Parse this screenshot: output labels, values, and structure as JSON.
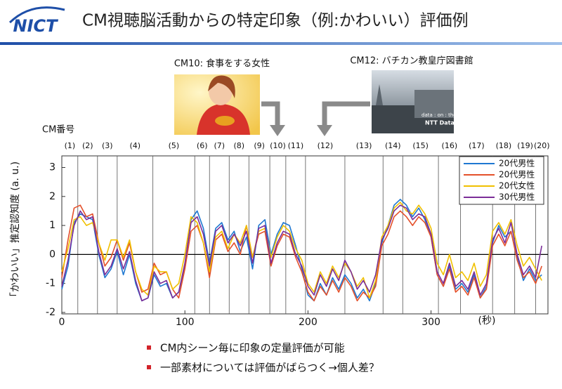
{
  "logo": "NICT",
  "header": {
    "title": "CM視聴脳活動からの特定印象（例:かわいい）評価例"
  },
  "images": [
    {
      "caption": "CM10: 食事をする女性"
    },
    {
      "caption": "CM12: バチカン教皇庁図書館",
      "text": [
        "data : on : the future",
        "NTT Data"
      ]
    }
  ],
  "bullets": [
    "CM内シーン毎に印象の定量評価が可能",
    "一部素材については評価がばらつく→個人差？"
  ],
  "chart_data": {
    "type": "line",
    "segment_title": "CM番号",
    "y_label": "「かわいい」推定認知度 (a. u.)",
    "x_label": "(秒)",
    "xlim": [
      0,
      395
    ],
    "xticks": [
      0,
      100,
      200,
      300
    ],
    "ylim": [
      -2.05,
      3.4
    ],
    "yticks": [
      -2,
      -1,
      0,
      1,
      2,
      3
    ],
    "segment_bounds": [
      13,
      29,
      45,
      74,
      108,
      120,
      136,
      152,
      169,
      182,
      198,
      230,
      261,
      277,
      306,
      324,
      350,
      368,
      385
    ],
    "segment_labels": [
      "(1)",
      "(2)",
      "(3)",
      "(4)",
      "(5)",
      "(6)",
      "(7)",
      "(8)",
      "(9)",
      "(10)",
      "(11)",
      "(12)",
      "(13)",
      "(14)",
      "(15)",
      "(16)",
      "(17)",
      "(18)",
      "(19)",
      "(20)"
    ],
    "legend": "upper right",
    "x": [
      0,
      5,
      10,
      15,
      20,
      25,
      30,
      35,
      40,
      45,
      50,
      55,
      60,
      65,
      70,
      75,
      80,
      85,
      90,
      95,
      100,
      105,
      110,
      115,
      120,
      125,
      130,
      135,
      140,
      145,
      150,
      155,
      160,
      165,
      170,
      175,
      180,
      185,
      190,
      195,
      200,
      205,
      210,
      215,
      220,
      225,
      230,
      235,
      240,
      245,
      250,
      255,
      260,
      265,
      270,
      275,
      280,
      285,
      290,
      295,
      300,
      305,
      310,
      315,
      320,
      325,
      330,
      335,
      340,
      345,
      350,
      355,
      360,
      365,
      370,
      375,
      380,
      385,
      390
    ],
    "series": [
      {
        "name": "20代男性",
        "color": "#1f78d1",
        "values": [
          -1.2,
          -0.4,
          1.1,
          1.4,
          1.3,
          1.2,
          0.0,
          -0.8,
          -0.5,
          0.1,
          -0.7,
          0.0,
          -1.0,
          -1.6,
          -1.5,
          -0.7,
          -1.1,
          -1.0,
          -1.5,
          -1.3,
          -0.4,
          1.2,
          1.5,
          0.9,
          -0.3,
          0.9,
          1.1,
          0.5,
          0.8,
          0.1,
          0.6,
          -0.5,
          1.0,
          1.2,
          0.0,
          0.7,
          1.1,
          1.0,
          0.3,
          -0.5,
          -1.4,
          -1.6,
          -1.0,
          -1.4,
          -0.8,
          -1.2,
          -0.7,
          -1.0,
          -1.5,
          -1.2,
          -1.6,
          -1.0,
          0.4,
          1.0,
          1.7,
          1.9,
          1.7,
          1.3,
          1.6,
          1.2,
          0.6,
          -0.7,
          -1.1,
          -0.4,
          -1.2,
          -1.0,
          -1.3,
          -0.7,
          -1.5,
          -1.1,
          0.4,
          1.0,
          0.6,
          0.8,
          -0.1,
          -0.9,
          -0.5,
          -0.9,
          -0.7
        ]
      },
      {
        "name": "20代男性",
        "color": "#e4502a",
        "values": [
          -0.8,
          0.5,
          1.6,
          1.7,
          1.3,
          1.4,
          0.4,
          -0.4,
          -0.1,
          0.5,
          -0.2,
          0.4,
          -0.6,
          -1.3,
          -1.2,
          -0.3,
          -0.7,
          -0.6,
          -1.2,
          -1.5,
          -0.5,
          0.8,
          1.0,
          0.4,
          -0.8,
          0.5,
          0.7,
          0.1,
          0.4,
          0.0,
          1.0,
          -0.1,
          0.7,
          0.8,
          -0.4,
          0.3,
          0.7,
          0.6,
          -0.1,
          -0.6,
          -1.3,
          -1.6,
          -1.1,
          -1.4,
          -0.9,
          -1.3,
          -0.8,
          -1.1,
          -1.6,
          -1.3,
          -1.5,
          -1.1,
          0.3,
          0.7,
          1.3,
          1.5,
          1.3,
          1.0,
          1.3,
          1.1,
          0.6,
          -0.7,
          -1.1,
          -0.5,
          -1.3,
          -1.1,
          -1.4,
          -0.8,
          -1.5,
          -1.2,
          0.3,
          0.7,
          0.3,
          0.8,
          -0.2,
          -0.8,
          -0.6,
          -1.0,
          -0.4
        ]
      },
      {
        "name": "20代女性",
        "color": "#f0c000",
        "values": [
          -0.6,
          0.2,
          1.2,
          1.3,
          1.0,
          1.1,
          0.4,
          -0.2,
          0.5,
          0.5,
          -0.1,
          0.5,
          -0.6,
          -1.2,
          -1.4,
          -0.4,
          -0.6,
          -0.6,
          -1.2,
          -1.0,
          0.0,
          1.3,
          1.1,
          0.4,
          -0.6,
          0.6,
          0.8,
          0.2,
          0.7,
          0.4,
          1.0,
          -0.1,
          0.8,
          0.9,
          -0.1,
          0.6,
          1.0,
          0.8,
          0.2,
          -0.2,
          -1.0,
          -1.3,
          -0.6,
          -1.0,
          -0.4,
          -0.8,
          -0.3,
          -0.6,
          -1.1,
          -0.8,
          -1.5,
          -0.9,
          0.6,
          1.0,
          1.6,
          1.8,
          1.5,
          1.4,
          1.7,
          1.4,
          0.9,
          -0.3,
          -0.7,
          0.0,
          -0.8,
          -0.6,
          -0.9,
          -0.3,
          -1.1,
          -0.7,
          0.8,
          1.1,
          0.7,
          1.2,
          0.3,
          -0.4,
          -0.1,
          -0.5,
          -0.9
        ]
      },
      {
        "name": "30代男性",
        "color": "#7b2d98",
        "values": [
          -1.1,
          -0.2,
          1.0,
          1.5,
          1.2,
          1.3,
          0.1,
          -0.7,
          -0.4,
          0.2,
          -0.5,
          0.1,
          -0.9,
          -1.6,
          -1.5,
          -0.6,
          -1.0,
          -0.9,
          -1.5,
          -1.3,
          -0.3,
          1.1,
          1.3,
          0.7,
          -0.4,
          0.8,
          1.0,
          0.4,
          0.7,
          0.3,
          0.8,
          -0.3,
          0.9,
          1.0,
          -0.3,
          0.4,
          0.8,
          0.7,
          0.0,
          -0.4,
          -1.1,
          -1.4,
          -0.7,
          -1.1,
          -0.5,
          -0.9,
          -0.2,
          -0.6,
          -1.2,
          -0.9,
          -1.3,
          -0.7,
          0.5,
          0.9,
          1.5,
          1.7,
          1.6,
          1.2,
          1.4,
          1.3,
          0.7,
          -0.6,
          -1.0,
          -0.3,
          -1.1,
          -0.9,
          -1.2,
          -0.6,
          -1.4,
          -1.0,
          0.5,
          0.9,
          0.4,
          1.1,
          0.0,
          -0.7,
          -0.4,
          -0.8,
          0.3
        ]
      }
    ]
  }
}
